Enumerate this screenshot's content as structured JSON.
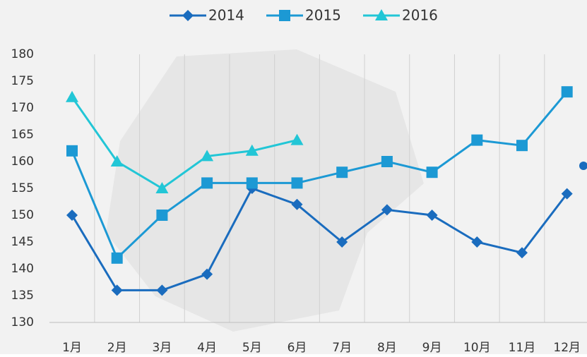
{
  "chart_data": {
    "type": "line",
    "categories": [
      "1月",
      "2月",
      "3月",
      "4月",
      "5月",
      "6月",
      "7月",
      "8月",
      "9月",
      "10月",
      "11月",
      "12月"
    ],
    "series": [
      {
        "name": "2014",
        "color": "#1a6cbe",
        "marker": "diamond",
        "values": [
          150,
          136,
          136,
          139,
          155,
          152,
          145,
          151,
          150,
          145,
          143,
          154
        ]
      },
      {
        "name": "2015",
        "color": "#1c99d4",
        "marker": "square",
        "values": [
          162,
          142,
          150,
          156,
          156,
          156,
          158,
          160,
          158,
          164,
          163,
          173
        ]
      },
      {
        "name": "2016",
        "color": "#22c6d6",
        "marker": "triangle",
        "values": [
          172,
          160,
          155,
          161,
          162,
          164,
          null,
          null,
          null,
          null,
          null,
          null
        ]
      }
    ],
    "ylim": [
      130,
      180
    ],
    "yticks": [
      130,
      135,
      140,
      145,
      150,
      155,
      160,
      165,
      170,
      175,
      180
    ],
    "legend": "top"
  }
}
